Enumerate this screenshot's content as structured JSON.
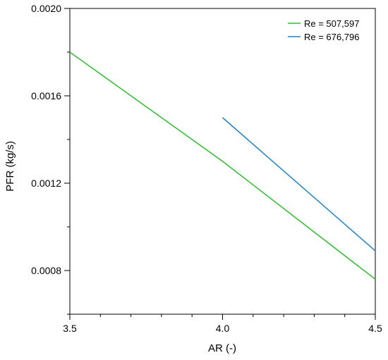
{
  "chart_data": {
    "type": "line",
    "title": "",
    "xlabel": "AR (-)",
    "ylabel": "PFR (kg/s)",
    "xlim": [
      3.5,
      4.5
    ],
    "ylim": [
      0.0006,
      0.002
    ],
    "x_ticks": [
      3.5,
      4.0,
      4.5
    ],
    "x_tick_labels": [
      "3.5",
      "4.0",
      "4.5"
    ],
    "x_minor_step": 0.1,
    "y_ticks": [
      0.0008,
      0.0012,
      0.0016,
      0.002
    ],
    "y_tick_labels": [
      "0.0008",
      "0.0012",
      "0.0016",
      "0.0020"
    ],
    "y_minor_step": 0.0002,
    "grid": false,
    "legend_position": "top-right",
    "series": [
      {
        "name": "Re = 507,597",
        "color": "#2ebd2e",
        "x": [
          3.5,
          4.0,
          4.5
        ],
        "y": [
          0.0018,
          0.0013,
          0.00076
        ]
      },
      {
        "name": "Re = 676,796",
        "color": "#1f84c3",
        "x": [
          4.0,
          4.5
        ],
        "y": [
          0.0015,
          0.00089
        ]
      }
    ]
  }
}
